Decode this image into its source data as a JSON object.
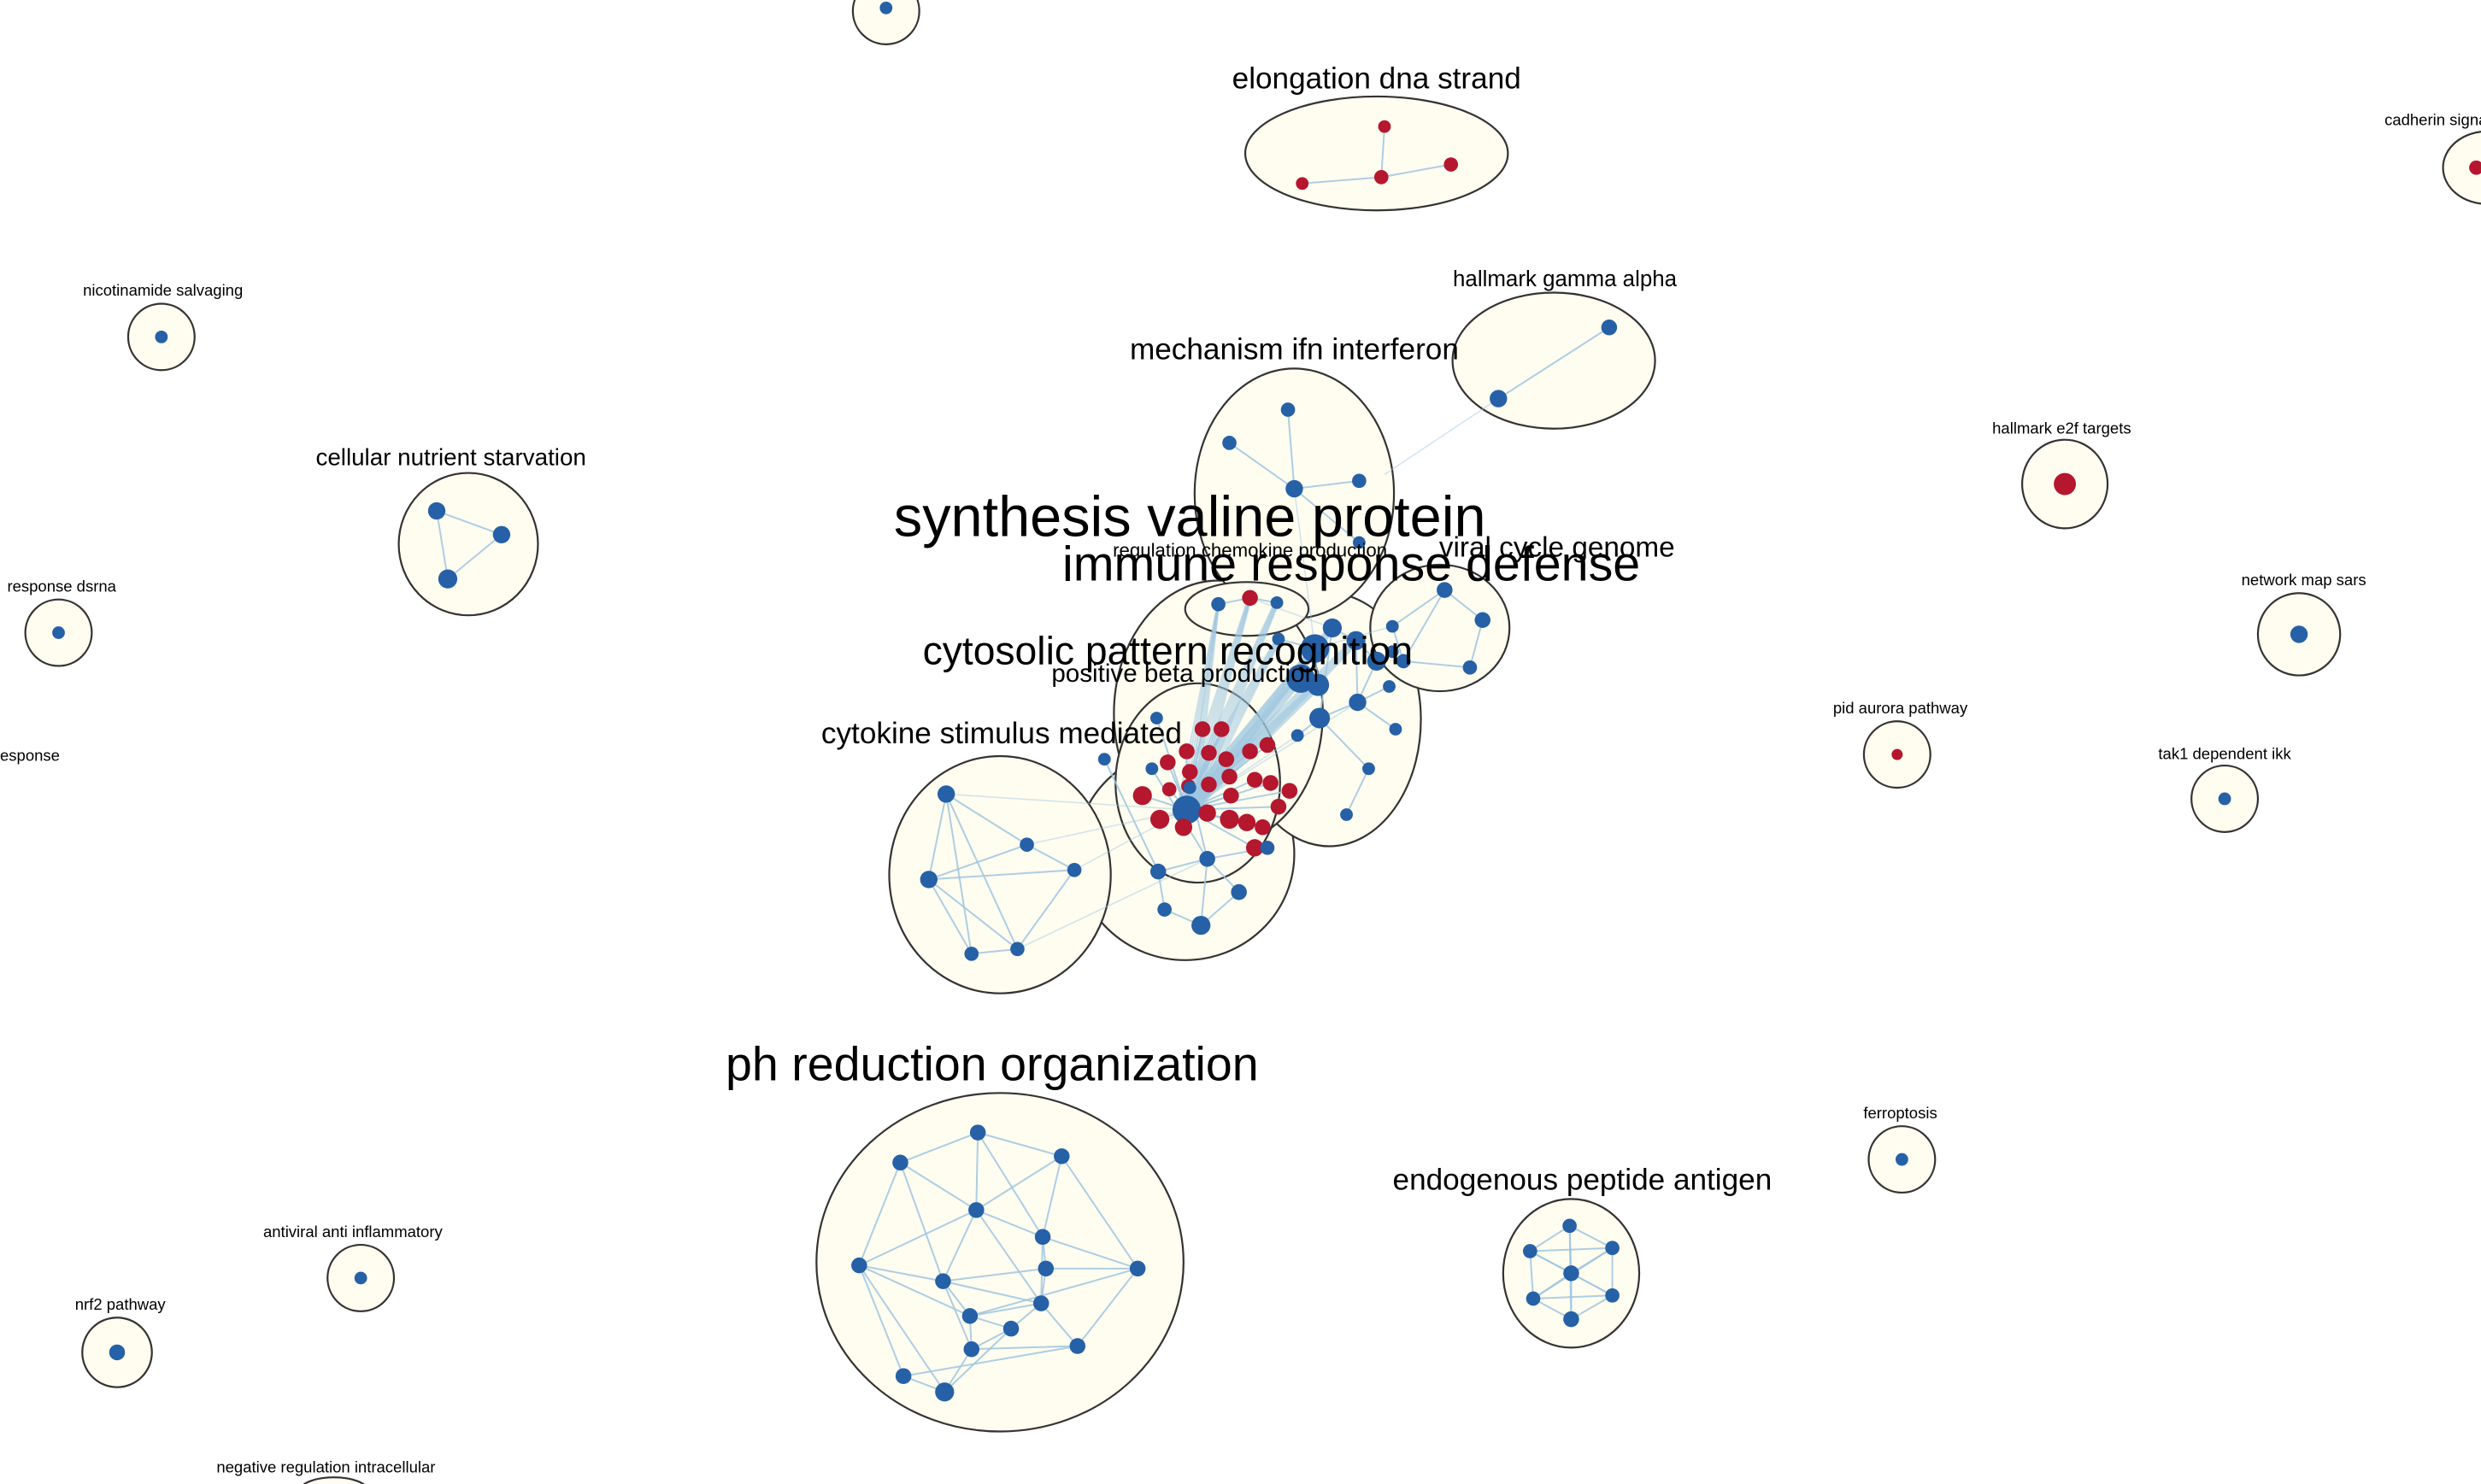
{
  "colors": {
    "background": "#ffffff",
    "cluster_fill": "#fefdf0",
    "cluster_stroke": "#333333",
    "edge": "#9fc6e0",
    "node_blue": "#2660a6",
    "node_red": "#b5172e"
  },
  "clusters": [
    {
      "id": "top-partial",
      "label": ""
    },
    {
      "id": "elongation",
      "label": "elongation dna strand"
    },
    {
      "id": "cadherin",
      "label": "cadherin signa"
    },
    {
      "id": "nicotinamide",
      "label": "nicotinamide salvaging"
    },
    {
      "id": "hallmark-gamma",
      "label": "hallmark gamma alpha"
    },
    {
      "id": "mechanism-ifn",
      "label": "mechanism ifn interferon"
    },
    {
      "id": "cellular-nutrient",
      "label": "cellular nutrient starvation"
    },
    {
      "id": "hallmark-e2f",
      "label": "hallmark e2f targets"
    },
    {
      "id": "synthesis-valine",
      "label": "synthesis valine protein"
    },
    {
      "id": "regulation-chemokine",
      "label": "regulation chemokine production"
    },
    {
      "id": "viral-cycle",
      "label": "viral cycle genome"
    },
    {
      "id": "immune-response",
      "label": "immune response defense"
    },
    {
      "id": "response-dsrna",
      "label": "response dsrna"
    },
    {
      "id": "network-map-sars",
      "label": "network map sars"
    },
    {
      "id": "cytosolic-pattern",
      "label": "cytosolic pattern recognition"
    },
    {
      "id": "positive-beta",
      "label": "positive beta production"
    },
    {
      "id": "pid-aurora",
      "label": "pid aurora pathway"
    },
    {
      "id": "esponse",
      "label": "esponse"
    },
    {
      "id": "cytokine-stimulus",
      "label": "cytokine stimulus mediated"
    },
    {
      "id": "tak1",
      "label": "tak1 dependent ikk"
    },
    {
      "id": "ph-reduction",
      "label": "ph reduction organization"
    },
    {
      "id": "ferroptosis",
      "label": "ferroptosis"
    },
    {
      "id": "endogenous-peptide",
      "label": "endogenous peptide antigen"
    },
    {
      "id": "antiviral",
      "label": "antiviral anti inflammatory"
    },
    {
      "id": "nrf2",
      "label": "nrf2 pathway"
    },
    {
      "id": "negative-regulation",
      "label": "negative regulation intracellular"
    }
  ]
}
